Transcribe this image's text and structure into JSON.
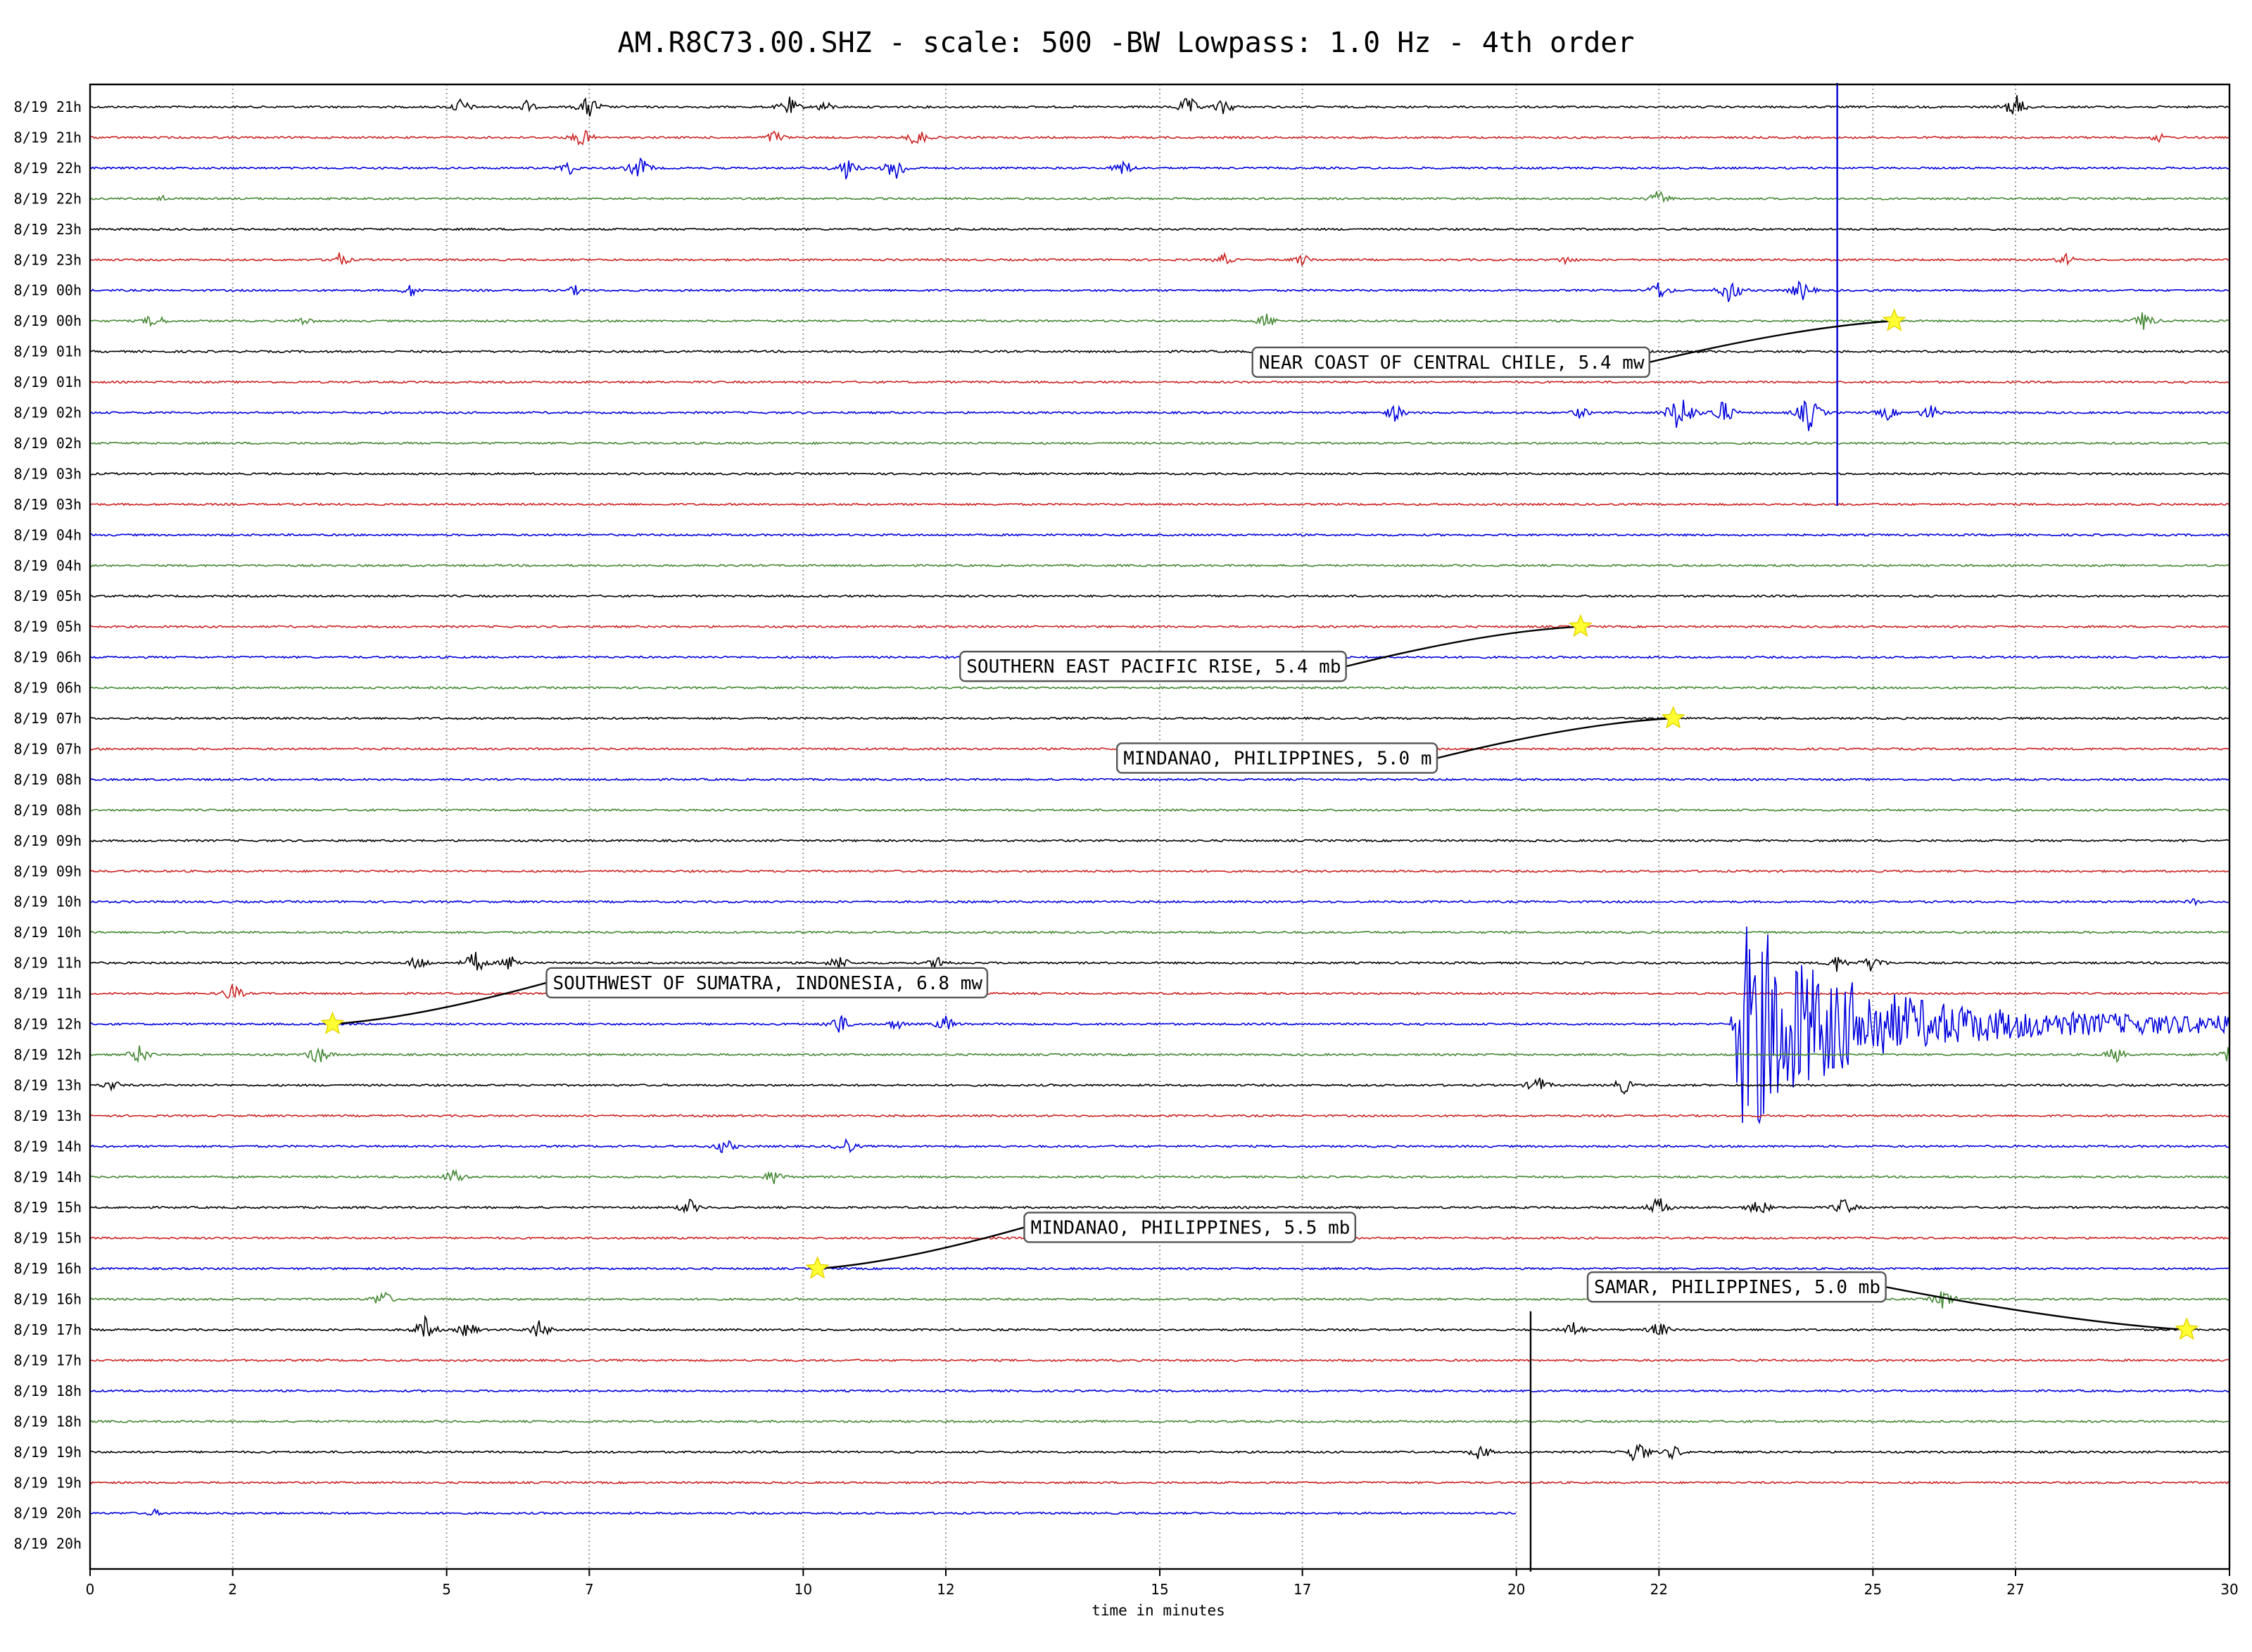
{
  "chart_data": {
    "type": "line",
    "title": "AM.R8C73.00.SHZ - scale: 500 -BW Lowpass: 1.0 Hz - 4th order",
    "xlabel": "time in minutes",
    "ylabel": "",
    "xlim": [
      0,
      30
    ],
    "x_ticks": [
      0,
      2,
      5,
      7,
      10,
      12,
      15,
      17,
      20,
      22,
      25,
      27,
      30
    ],
    "grid": "vertical-dotted",
    "trace_colors": [
      "#000000",
      "#cc2222",
      "#0000dd",
      "#448833"
    ],
    "rows": [
      "8/19 21h",
      "8/19 21h",
      "8/19 22h",
      "8/19 22h",
      "8/19 23h",
      "8/19 23h",
      "8/19 00h",
      "8/19 00h",
      "8/19 01h",
      "8/19 01h",
      "8/19 02h",
      "8/19 02h",
      "8/19 03h",
      "8/19 03h",
      "8/19 04h",
      "8/19 04h",
      "8/19 05h",
      "8/19 05h",
      "8/19 06h",
      "8/19 06h",
      "8/19 07h",
      "8/19 07h",
      "8/19 08h",
      "8/19 08h",
      "8/19 09h",
      "8/19 09h",
      "8/19 10h",
      "8/19 10h",
      "8/19 11h",
      "8/19 11h",
      "8/19 12h",
      "8/19 12h",
      "8/19 13h",
      "8/19 13h",
      "8/19 14h",
      "8/19 14h",
      "8/19 15h",
      "8/19 15h",
      "8/19 16h",
      "8/19 16h",
      "8/19 17h",
      "8/19 17h",
      "8/19 18h",
      "8/19 18h",
      "8/19 19h",
      "8/19 19h",
      "8/19 20h",
      "8/19 20h"
    ],
    "trace_end_minute": 20.0,
    "bursts": [
      {
        "row": 0,
        "x": 5.2,
        "amp": 14
      },
      {
        "row": 0,
        "x": 6.1,
        "amp": 12
      },
      {
        "row": 0,
        "x": 7.0,
        "amp": 20
      },
      {
        "row": 0,
        "x": 9.8,
        "amp": 16
      },
      {
        "row": 0,
        "x": 10.3,
        "amp": 10
      },
      {
        "row": 0,
        "x": 15.4,
        "amp": 18
      },
      {
        "row": 0,
        "x": 15.9,
        "amp": 14
      },
      {
        "row": 0,
        "x": 27.0,
        "amp": 20
      },
      {
        "row": 1,
        "x": 6.9,
        "amp": 16
      },
      {
        "row": 1,
        "x": 9.6,
        "amp": 12
      },
      {
        "row": 1,
        "x": 11.6,
        "amp": 16
      },
      {
        "row": 1,
        "x": 29.0,
        "amp": 8
      },
      {
        "row": 2,
        "x": 6.7,
        "amp": 12
      },
      {
        "row": 2,
        "x": 7.7,
        "amp": 20
      },
      {
        "row": 2,
        "x": 10.6,
        "amp": 18
      },
      {
        "row": 2,
        "x": 11.3,
        "amp": 22
      },
      {
        "row": 2,
        "x": 14.5,
        "amp": 14
      },
      {
        "row": 3,
        "x": 1.0,
        "amp": 6
      },
      {
        "row": 3,
        "x": 22.0,
        "amp": 14
      },
      {
        "row": 5,
        "x": 3.5,
        "amp": 12
      },
      {
        "row": 5,
        "x": 15.9,
        "amp": 10
      },
      {
        "row": 5,
        "x": 17.0,
        "amp": 10
      },
      {
        "row": 5,
        "x": 20.7,
        "amp": 8
      },
      {
        "row": 5,
        "x": 27.7,
        "amp": 10
      },
      {
        "row": 6,
        "x": 4.5,
        "amp": 10
      },
      {
        "row": 6,
        "x": 6.8,
        "amp": 8
      },
      {
        "row": 6,
        "x": 22.0,
        "amp": 16
      },
      {
        "row": 6,
        "x": 23.0,
        "amp": 22
      },
      {
        "row": 6,
        "x": 24.0,
        "amp": 18
      },
      {
        "row": 7,
        "x": 0.9,
        "amp": 14
      },
      {
        "row": 7,
        "x": 3.0,
        "amp": 8
      },
      {
        "row": 7,
        "x": 16.5,
        "amp": 12
      },
      {
        "row": 7,
        "x": 28.8,
        "amp": 16
      },
      {
        "row": 10,
        "x": 18.3,
        "amp": 14
      },
      {
        "row": 10,
        "x": 20.9,
        "amp": 10
      },
      {
        "row": 10,
        "x": 22.3,
        "amp": 40
      },
      {
        "row": 10,
        "x": 22.9,
        "amp": 22
      },
      {
        "row": 10,
        "x": 24.1,
        "amp": 30
      },
      {
        "row": 10,
        "x": 25.2,
        "amp": 12
      },
      {
        "row": 10,
        "x": 25.8,
        "amp": 14
      },
      {
        "row": 26,
        "x": 29.5,
        "amp": 6
      },
      {
        "row": 28,
        "x": 4.6,
        "amp": 14
      },
      {
        "row": 28,
        "x": 5.4,
        "amp": 20
      },
      {
        "row": 28,
        "x": 5.9,
        "amp": 14
      },
      {
        "row": 28,
        "x": 10.5,
        "amp": 14
      },
      {
        "row": 28,
        "x": 11.9,
        "amp": 12
      },
      {
        "row": 28,
        "x": 24.5,
        "amp": 14
      },
      {
        "row": 28,
        "x": 25.0,
        "amp": 16
      },
      {
        "row": 29,
        "x": 2.0,
        "amp": 16
      },
      {
        "row": 30,
        "x": 10.5,
        "amp": 18
      },
      {
        "row": 30,
        "x": 11.3,
        "amp": 10
      },
      {
        "row": 30,
        "x": 12.0,
        "amp": 14
      },
      {
        "row": 31,
        "x": 0.7,
        "amp": 16
      },
      {
        "row": 31,
        "x": 3.2,
        "amp": 18
      },
      {
        "row": 31,
        "x": 28.4,
        "amp": 14
      },
      {
        "row": 31,
        "x": 30.0,
        "amp": 14
      },
      {
        "row": 32,
        "x": 0.3,
        "amp": 10
      },
      {
        "row": 32,
        "x": 20.3,
        "amp": 16
      },
      {
        "row": 32,
        "x": 21.5,
        "amp": 14
      },
      {
        "row": 34,
        "x": 8.9,
        "amp": 14
      },
      {
        "row": 34,
        "x": 10.6,
        "amp": 14
      },
      {
        "row": 35,
        "x": 5.1,
        "amp": 14
      },
      {
        "row": 35,
        "x": 9.6,
        "amp": 14
      },
      {
        "row": 36,
        "x": 8.4,
        "amp": 14
      },
      {
        "row": 36,
        "x": 22.0,
        "amp": 18
      },
      {
        "row": 36,
        "x": 23.4,
        "amp": 16
      },
      {
        "row": 36,
        "x": 24.6,
        "amp": 16
      },
      {
        "row": 39,
        "x": 4.1,
        "amp": 16
      },
      {
        "row": 39,
        "x": 26.0,
        "amp": 18
      },
      {
        "row": 40,
        "x": 4.7,
        "amp": 20
      },
      {
        "row": 40,
        "x": 5.3,
        "amp": 14
      },
      {
        "row": 40,
        "x": 6.3,
        "amp": 16
      },
      {
        "row": 40,
        "x": 20.8,
        "amp": 14
      },
      {
        "row": 40,
        "x": 22.0,
        "amp": 14
      },
      {
        "row": 44,
        "x": 19.5,
        "amp": 14
      },
      {
        "row": 44,
        "x": 21.7,
        "amp": 22
      },
      {
        "row": 44,
        "x": 22.2,
        "amp": 12
      },
      {
        "row": 46,
        "x": 0.9,
        "amp": 6
      }
    ],
    "spikes": [
      {
        "row": 2,
        "x": 24.5,
        "up": 1,
        "down": 480,
        "color": "#0000dd"
      },
      {
        "row": 44,
        "x": 20.2,
        "up": 80,
        "down": 170,
        "color": "#000000"
      }
    ],
    "large_event": {
      "row": 30,
      "x_start": 23.0,
      "x_peak": 23.2,
      "x_end": 30.0,
      "amp": 150
    },
    "annotations": [
      {
        "label": "NEAR COAST OF CENTRAL CHILE, 5.4 mw",
        "star_x": 25.3,
        "star_row": 7,
        "label_x": 16.3,
        "label_row": 8.35
      },
      {
        "label": "SOUTHERN EAST PACIFIC RISE, 5.4 mb",
        "star_x": 20.9,
        "star_row": 17,
        "label_x": 12.2,
        "label_row": 18.3
      },
      {
        "label": "MINDANAO, PHILIPPINES, 5.0 m",
        "star_x": 22.2,
        "star_row": 20,
        "label_x": 14.4,
        "label_row": 21.3
      },
      {
        "label": "SOUTHWEST OF SUMATRA, INDONESIA, 6.8 mw",
        "star_x": 3.4,
        "star_row": 30,
        "label_x": 6.4,
        "label_row": 28.65
      },
      {
        "label": "MINDANAO, PHILIPPINES, 5.5 mb",
        "star_x": 10.2,
        "star_row": 38,
        "label_x": 13.1,
        "label_row": 36.65
      },
      {
        "label": "SAMAR, PHILIPPINES, 5.0 mb",
        "star_x": 29.4,
        "star_row": 40,
        "label_x": 21.0,
        "label_row": 38.6
      }
    ]
  }
}
